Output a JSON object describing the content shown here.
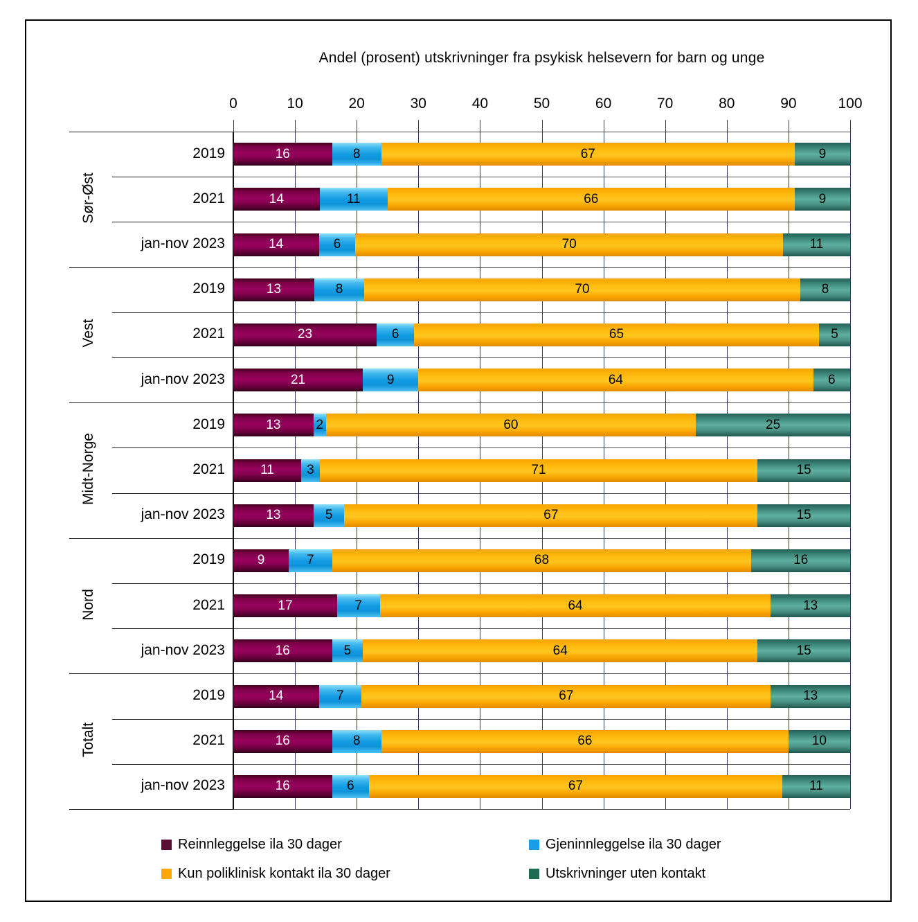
{
  "title": "Andel (prosent) utskrivninger fra psykisk helsevern for barn og unge",
  "chart_data": {
    "type": "bar",
    "orientation": "horizontal",
    "stacked": true,
    "title": "Andel (prosent) utskrivninger fra psykisk helsevern for barn og unge",
    "x_axis": {
      "min": 0,
      "max": 100,
      "tick_interval": 10,
      "ticks": [
        0,
        10,
        20,
        30,
        40,
        50,
        60,
        70,
        80,
        90,
        100
      ],
      "gridlines": true
    },
    "series_names": [
      "Reinnleggelse ila 30 dager",
      "Gjeninnleggelse ila 30 dager",
      "Kun poliklinisk kontakt ila 30 dager",
      "Utskrivninger uten kontakt"
    ],
    "series_colors": [
      "#6B0140",
      "#1E9FE4",
      "#FFB005",
      "#3F8B7C"
    ],
    "groups": [
      {
        "name": "Sør-Øst",
        "rows": [
          {
            "label": "2019",
            "values": [
              16,
              8,
              67,
              9
            ]
          },
          {
            "label": "2021",
            "values": [
              14,
              11,
              66,
              9
            ]
          },
          {
            "label": "jan-nov 2023",
            "values": [
              14,
              6,
              70,
              11
            ]
          }
        ]
      },
      {
        "name": "Vest",
        "rows": [
          {
            "label": "2019",
            "values": [
              13,
              8,
              70,
              8
            ]
          },
          {
            "label": "2021",
            "values": [
              23,
              6,
              65,
              5
            ]
          },
          {
            "label": "jan-nov 2023",
            "values": [
              21,
              9,
              64,
              6
            ]
          }
        ]
      },
      {
        "name": "Midt-Norge",
        "rows": [
          {
            "label": "2019",
            "values": [
              13,
              2,
              60,
              25
            ]
          },
          {
            "label": "2021",
            "values": [
              11,
              3,
              71,
              15
            ]
          },
          {
            "label": "jan-nov 2023",
            "values": [
              13,
              5,
              67,
              15
            ]
          }
        ]
      },
      {
        "name": "Nord",
        "rows": [
          {
            "label": "2019",
            "values": [
              9,
              7,
              68,
              16
            ]
          },
          {
            "label": "2021",
            "values": [
              17,
              7,
              64,
              13
            ]
          },
          {
            "label": "jan-nov 2023",
            "values": [
              16,
              5,
              64,
              15
            ]
          }
        ]
      },
      {
        "name": "Totalt",
        "rows": [
          {
            "label": "2019",
            "values": [
              14,
              7,
              67,
              13
            ]
          },
          {
            "label": "2021",
            "values": [
              16,
              8,
              66,
              10
            ]
          },
          {
            "label": "jan-nov 2023",
            "values": [
              16,
              6,
              67,
              11
            ]
          }
        ]
      }
    ]
  },
  "legend": {
    "items": [
      {
        "label": "Reinnleggelse ila 30 dager",
        "color": "#5C0F35"
      },
      {
        "label": "Gjeninnleggelse ila 30 dager",
        "color": "#1B9CE8"
      },
      {
        "label": "Kun poliklinisk kontakt ila 30 dager",
        "color": "#FFA805"
      },
      {
        "label": "Utskrivninger uten kontakt",
        "color": "#1E6B55"
      }
    ]
  }
}
